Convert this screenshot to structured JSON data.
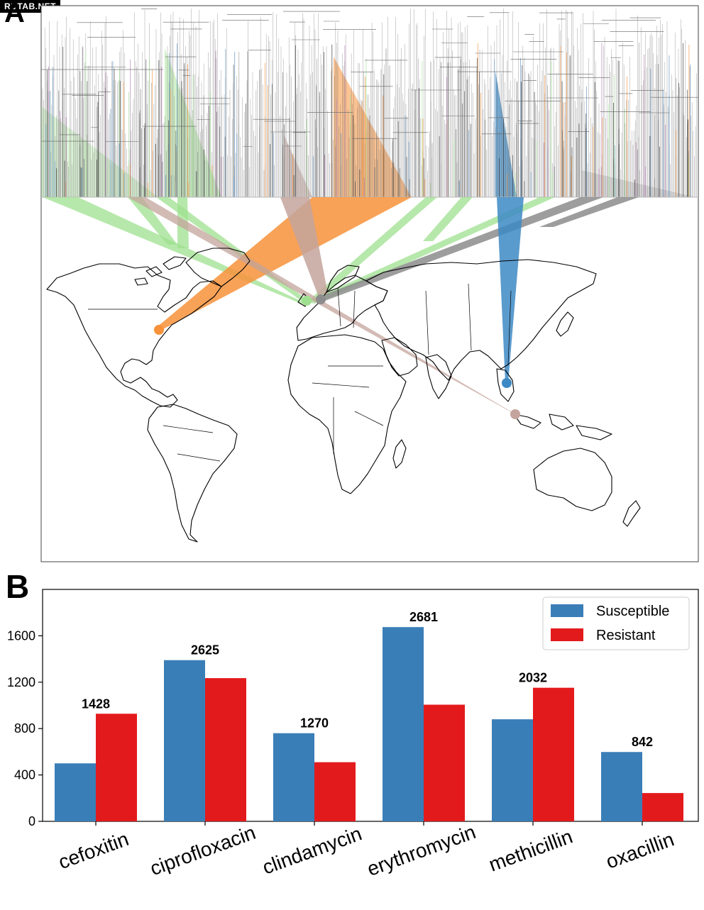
{
  "watermark": "RUTAB.NET",
  "panels": {
    "a": "A",
    "b": "B"
  },
  "colors": {
    "green": "#9ee08f",
    "orange": "#f7923a",
    "rose": "#c4a49c",
    "gray": "#8c8c8c",
    "blue": "#3d89c4",
    "susceptible": "#3a7eb8",
    "resistant": "#e31a1c"
  },
  "map": {
    "clade_markers": [
      {
        "color": "orange",
        "location": "North America (east coast)"
      },
      {
        "color": "green",
        "location": "Western Europe"
      },
      {
        "color": "gray",
        "location": "Western Europe"
      },
      {
        "color": "rose",
        "location": "Southeast Asia (Singapore)"
      },
      {
        "color": "blue",
        "location": "Southeast Asia (Vietnam)"
      }
    ]
  },
  "chart_data": {
    "type": "bar",
    "categories": [
      "cefoxitin",
      "ciprofloxacin",
      "clindamycin",
      "erythromycin",
      "methicillin",
      "oxacillin"
    ],
    "series": [
      {
        "name": "Susceptible",
        "color": "#3a7eb8",
        "values": [
          500,
          1390,
          760,
          1675,
          880,
          598
        ]
      },
      {
        "name": "Resistant",
        "color": "#e31a1c",
        "values": [
          928,
          1235,
          510,
          1006,
          1152,
          244
        ]
      }
    ],
    "totals": [
      "1428",
      "2625",
      "1270",
      "2681",
      "2032",
      "842"
    ],
    "ylim": [
      0,
      2000
    ],
    "yticks": [
      0,
      400,
      800,
      1200,
      1600
    ],
    "legend_placement": "top-right",
    "grid": false
  }
}
